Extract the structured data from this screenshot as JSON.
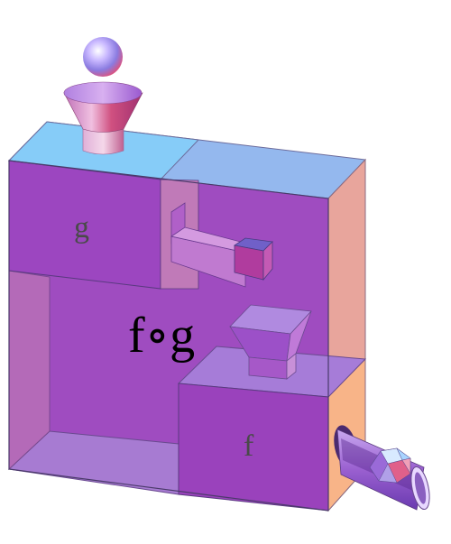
{
  "labels": {
    "inner_function": "g",
    "outer_function": "f",
    "composition": "f∘g"
  },
  "colors": {
    "box_front": "#9b47c1",
    "box_top": "#8ec8f0",
    "box_right": "#e6a3a0",
    "box_floor": "#a77bd0",
    "inner_panel": "#a04ab8",
    "chute_orange": "#f6b38a"
  },
  "icons": {
    "ball": "sphere-icon",
    "input_funnel": "funnel-icon",
    "ramp": "ramp-icon",
    "inner_funnel": "funnel-icon",
    "output_chute": "chute-icon",
    "output_gem": "gem-icon"
  }
}
